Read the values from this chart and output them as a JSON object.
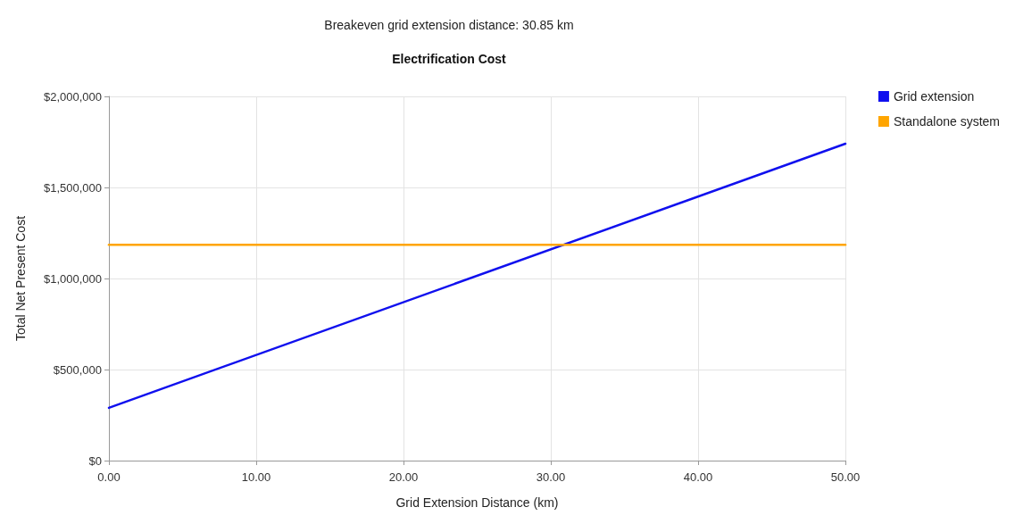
{
  "chart_data": {
    "type": "line",
    "title": "Electrification Cost",
    "subtitle": "Breakeven grid extension distance: 30.85 km",
    "xlabel": "Grid Extension Distance (km)",
    "ylabel": "Total Net Present Cost",
    "series": [
      {
        "name": "Grid extension",
        "color": "#1010ee",
        "values": [
          290000,
          1740000
        ]
      },
      {
        "name": "Standalone system",
        "color": "#ffa500",
        "values": [
          1185000,
          1185000
        ]
      }
    ],
    "x": [
      0,
      50
    ],
    "xlim": [
      0,
      50
    ],
    "xticks": [
      {
        "value": 0,
        "label": "0.00"
      },
      {
        "value": 10,
        "label": "10.00"
      },
      {
        "value": 20,
        "label": "20.00"
      },
      {
        "value": 30,
        "label": "30.00"
      },
      {
        "value": 40,
        "label": "40.00"
      },
      {
        "value": 50,
        "label": "50.00"
      }
    ],
    "ylim": [
      0,
      2000000
    ],
    "yticks": [
      {
        "value": 0,
        "label": "$0"
      },
      {
        "value": 500000,
        "label": "$500,000"
      },
      {
        "value": 1000000,
        "label": "$1,000,000"
      },
      {
        "value": 1500000,
        "label": "$1,500,000"
      },
      {
        "value": 2000000,
        "label": "$2,000,000"
      }
    ],
    "grid": true,
    "legend": "top right",
    "marker": "none",
    "line_style": "solid"
  }
}
